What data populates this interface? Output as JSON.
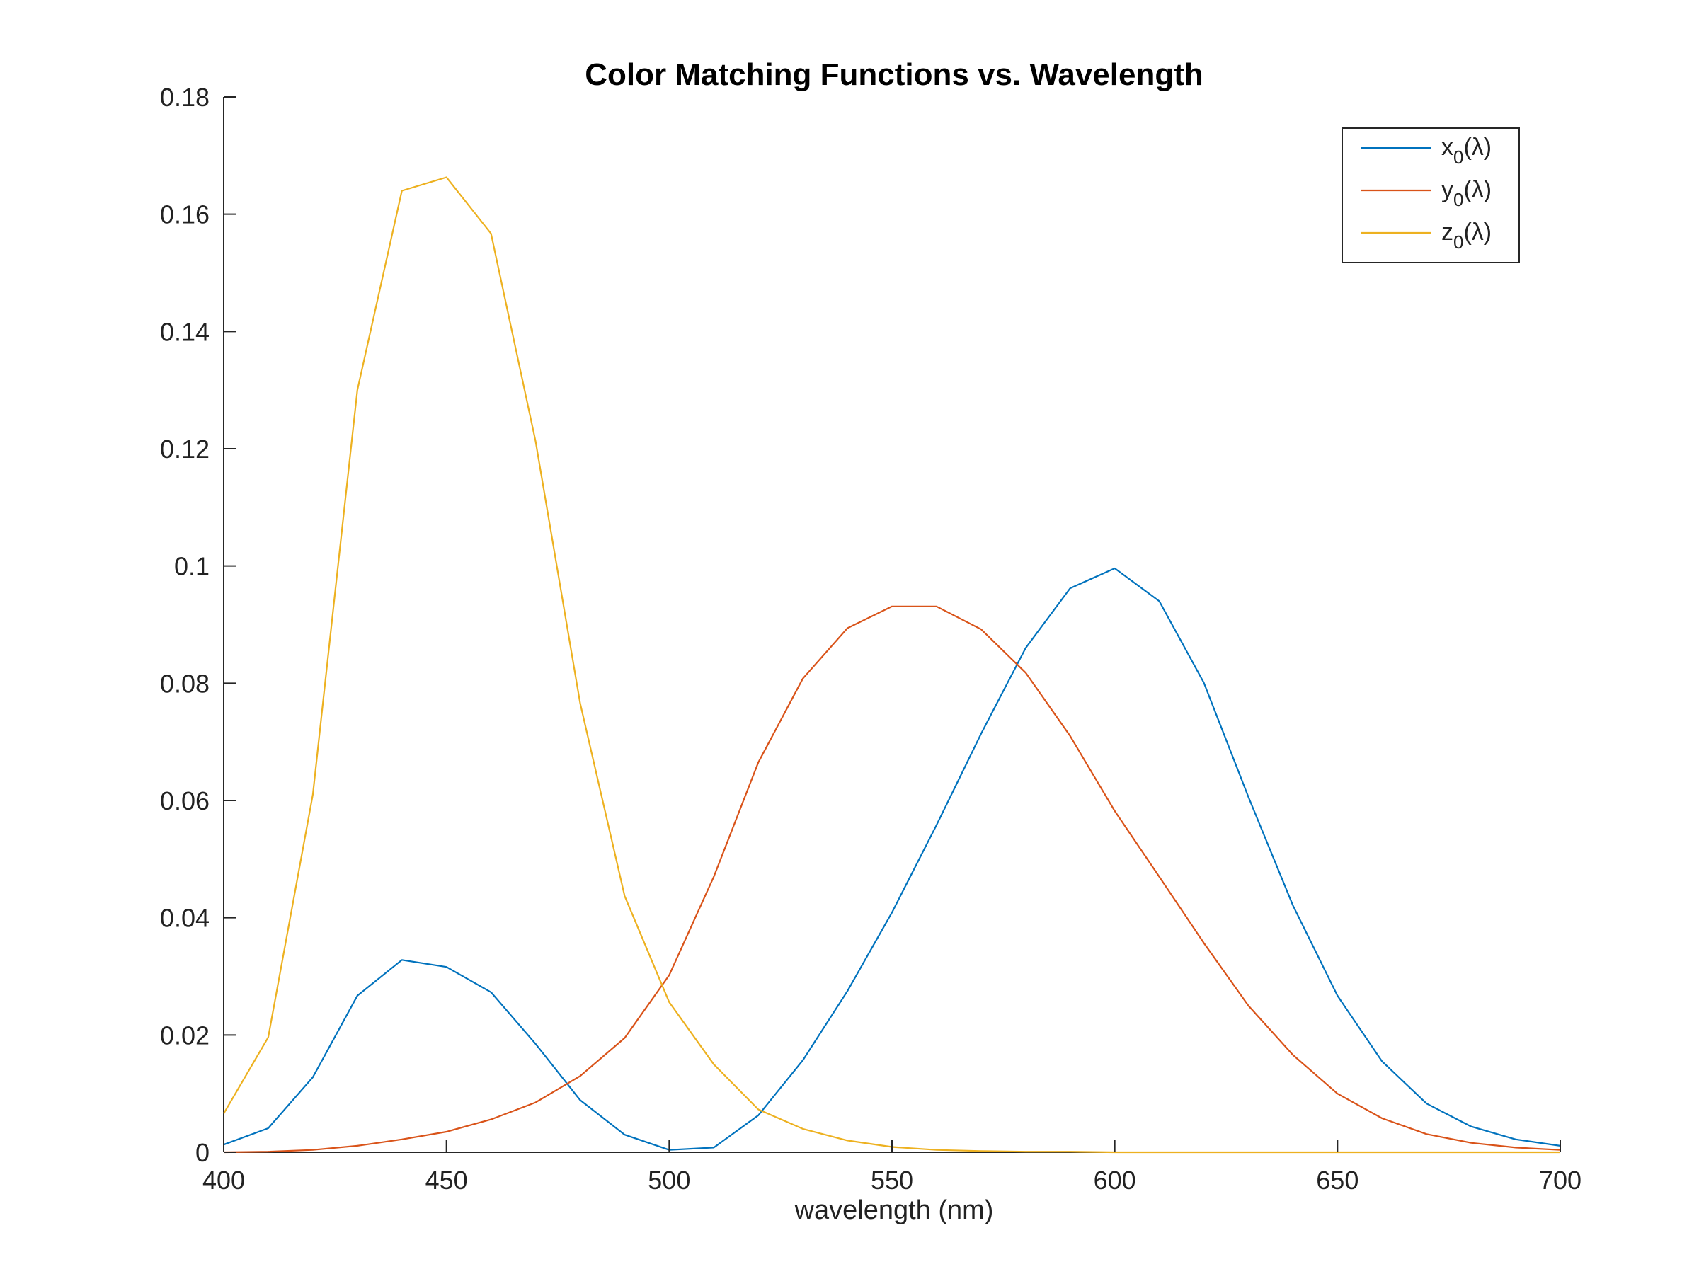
{
  "chart_data": {
    "type": "line",
    "title": "Color Matching Functions vs. Wavelength",
    "xlabel": "wavelength (nm)",
    "ylabel": "",
    "xlim": [
      400,
      700
    ],
    "ylim": [
      0,
      0.18
    ],
    "xticks": [
      "400",
      "450",
      "500",
      "550",
      "600",
      "650",
      "700"
    ],
    "yticks": [
      "0",
      "0.02",
      "0.04",
      "0.06",
      "0.08",
      "0.1",
      "0.12",
      "0.14",
      "0.16",
      "0.18"
    ],
    "grid": false,
    "legend_position": "top-right",
    "x": [
      400,
      410,
      420,
      430,
      440,
      450,
      460,
      470,
      480,
      490,
      500,
      510,
      520,
      530,
      540,
      550,
      560,
      570,
      580,
      590,
      600,
      610,
      620,
      630,
      640,
      650,
      660,
      670,
      680,
      690,
      700
    ],
    "series": [
      {
        "name": "x0(λ)",
        "label_main": "x",
        "label_sub": "0",
        "label_tail": "(λ)",
        "color": "#0072BD",
        "values": [
          0.0013,
          0.0041,
          0.0128,
          0.0267,
          0.0328,
          0.0316,
          0.0273,
          0.0185,
          0.0089,
          0.003,
          0.0004,
          0.0008,
          0.0063,
          0.0157,
          0.0275,
          0.0409,
          0.0558,
          0.0714,
          0.086,
          0.0962,
          0.0996,
          0.094,
          0.0801,
          0.0606,
          0.0421,
          0.0267,
          0.0155,
          0.0083,
          0.0044,
          0.0022,
          0.0011
        ]
      },
      {
        "name": "y0(λ)",
        "label_main": "y",
        "label_sub": "0",
        "label_tail": "(λ)",
        "color": "#D95319",
        "values": [
          0.0,
          0.0001,
          0.0004,
          0.0011,
          0.0022,
          0.0035,
          0.0056,
          0.0085,
          0.013,
          0.0195,
          0.0302,
          0.047,
          0.0665,
          0.0808,
          0.0894,
          0.0931,
          0.0931,
          0.0892,
          0.0818,
          0.071,
          0.0582,
          0.047,
          0.0357,
          0.025,
          0.0166,
          0.01,
          0.0058,
          0.0031,
          0.0016,
          0.0008,
          0.0004
        ]
      },
      {
        "name": "z0(λ)",
        "label_main": "z",
        "label_sub": "0",
        "label_tail": "(λ)",
        "color": "#EDB120",
        "values": [
          0.0066,
          0.0196,
          0.061,
          0.13,
          0.164,
          0.1663,
          0.1567,
          0.1213,
          0.0766,
          0.0437,
          0.0256,
          0.015,
          0.0073,
          0.004,
          0.002,
          0.0009,
          0.0004,
          0.0002,
          0.0001,
          0.0001,
          0.0,
          0.0,
          0.0,
          0.0,
          0.0,
          0.0,
          0.0,
          0.0,
          0.0,
          0.0,
          0.0
        ]
      }
    ]
  }
}
